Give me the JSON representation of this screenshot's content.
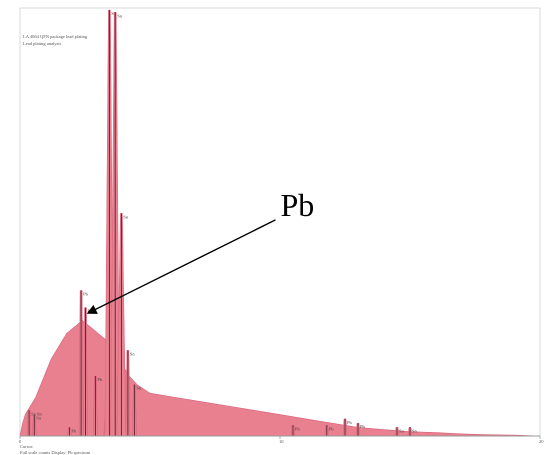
{
  "chart_data": {
    "type": "area",
    "title_lines": [
      "LA 4064 QFN package lead plating",
      "Lead plating analysis"
    ],
    "xlim": [
      0,
      20
    ],
    "ylim": [
      0,
      1
    ],
    "x_tick_labels": [
      {
        "x": 0,
        "label": "0"
      },
      {
        "x": 10,
        "label": "10"
      },
      {
        "x": 20,
        "label": "20"
      }
    ],
    "footer_lines": [
      "Cursor:",
      "Full scale counts   Display: Pb spectrum"
    ],
    "color": "#e8808f",
    "annotation": {
      "text": "Pb",
      "target_x": 2.52,
      "target_y": 0.29
    },
    "spectrum": {
      "x": [
        0.0,
        0.1,
        0.2,
        0.3,
        0.4,
        0.5,
        0.6,
        0.8,
        1.0,
        1.2,
        1.4,
        1.6,
        1.8,
        2.0,
        2.2,
        2.4,
        2.6,
        2.8,
        3.0,
        3.2,
        3.4,
        3.6,
        3.8,
        4.0,
        4.2,
        4.5,
        5.0,
        6.0,
        7.0,
        8.0,
        9.0,
        10.0,
        11.0,
        12.0,
        13.0,
        14.0,
        15.0,
        16.0,
        17.0,
        18.0,
        19.0,
        20.0
      ],
      "y": [
        0.0,
        0.03,
        0.05,
        0.06,
        0.07,
        0.08,
        0.09,
        0.12,
        0.15,
        0.18,
        0.2,
        0.22,
        0.24,
        0.25,
        0.26,
        0.27,
        0.26,
        0.25,
        0.24,
        0.23,
        0.22,
        0.2,
        0.18,
        0.16,
        0.14,
        0.12,
        0.1,
        0.09,
        0.08,
        0.07,
        0.06,
        0.05,
        0.04,
        0.03,
        0.02,
        0.015,
        0.01,
        0.008,
        0.005,
        0.003,
        0.002,
        0.0
      ]
    },
    "peaks": [
      {
        "x": 0.35,
        "y": 0.06,
        "label": "Sn Sn"
      },
      {
        "x": 0.55,
        "y": 0.05,
        "label": "Sn"
      },
      {
        "x": 1.9,
        "y": 0.02,
        "label": "Pb"
      },
      {
        "x": 2.35,
        "y": 0.34,
        "label": "Pb"
      },
      {
        "x": 2.52,
        "y": 0.3,
        "label": "Pb"
      },
      {
        "x": 2.9,
        "y": 0.14,
        "label": "Pb"
      },
      {
        "x": 3.3,
        "y": 0.04,
        "label": "Sn"
      },
      {
        "x": 3.44,
        "y": 0.995,
        "label": "Sn"
      },
      {
        "x": 3.66,
        "y": 0.99,
        "label": "Sn"
      },
      {
        "x": 3.9,
        "y": 0.52,
        "label": "Sn"
      },
      {
        "x": 4.15,
        "y": 0.2,
        "label": "Sn"
      },
      {
        "x": 4.4,
        "y": 0.12,
        "label": "Sn"
      },
      {
        "x": 10.5,
        "y": 0.025,
        "label": "Pb"
      },
      {
        "x": 11.8,
        "y": 0.025,
        "label": "Pb"
      },
      {
        "x": 12.5,
        "y": 0.04,
        "label": "Pb"
      },
      {
        "x": 13.0,
        "y": 0.03,
        "label": "Pb"
      },
      {
        "x": 14.5,
        "y": 0.02,
        "label": "Sn"
      },
      {
        "x": 15.0,
        "y": 0.02,
        "label": "Sn"
      }
    ]
  }
}
